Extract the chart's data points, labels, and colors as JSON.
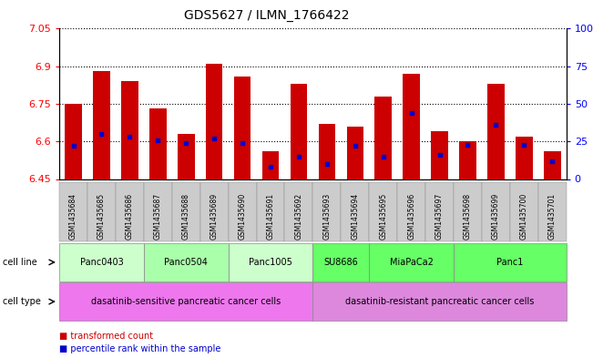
{
  "title": "GDS5627 / ILMN_1766422",
  "samples": [
    "GSM1435684",
    "GSM1435685",
    "GSM1435686",
    "GSM1435687",
    "GSM1435688",
    "GSM1435689",
    "GSM1435690",
    "GSM1435691",
    "GSM1435692",
    "GSM1435693",
    "GSM1435694",
    "GSM1435695",
    "GSM1435696",
    "GSM1435697",
    "GSM1435698",
    "GSM1435699",
    "GSM1435700",
    "GSM1435701"
  ],
  "red_values": [
    6.75,
    6.88,
    6.84,
    6.73,
    6.63,
    6.91,
    6.86,
    6.56,
    6.83,
    6.67,
    6.66,
    6.78,
    6.87,
    6.64,
    6.6,
    6.83,
    6.62,
    6.56
  ],
  "blue_values": [
    22,
    30,
    28,
    26,
    24,
    27,
    24,
    8,
    15,
    10,
    22,
    15,
    44,
    16,
    23,
    36,
    23,
    12
  ],
  "ylim_left": [
    6.45,
    7.05
  ],
  "ylim_right": [
    0,
    100
  ],
  "yticks_left": [
    6.45,
    6.6,
    6.75,
    6.9,
    7.05
  ],
  "yticks_right": [
    0,
    25,
    50,
    75,
    100
  ],
  "ytick_labels_left": [
    "6.45",
    "6.6",
    "6.75",
    "6.9",
    "7.05"
  ],
  "ytick_labels_right": [
    "0",
    "25",
    "50",
    "75",
    "100%"
  ],
  "cell_line_groups": [
    {
      "label": "Panc0403",
      "start": 0,
      "end": 2,
      "color": "#ccffcc"
    },
    {
      "label": "Panc0504",
      "start": 3,
      "end": 5,
      "color": "#aaffaa"
    },
    {
      "label": "Panc1005",
      "start": 6,
      "end": 8,
      "color": "#ccffcc"
    },
    {
      "label": "SU8686",
      "start": 9,
      "end": 10,
      "color": "#66ff66"
    },
    {
      "label": "MiaPaCa2",
      "start": 11,
      "end": 13,
      "color": "#66ff66"
    },
    {
      "label": "Panc1",
      "start": 14,
      "end": 17,
      "color": "#66ff66"
    }
  ],
  "cell_type_groups": [
    {
      "label": "dasatinib-sensitive pancreatic cancer cells",
      "start": 0,
      "end": 8,
      "color": "#ee77ee"
    },
    {
      "label": "dasatinib-resistant pancreatic cancer cells",
      "start": 9,
      "end": 17,
      "color": "#dd88dd"
    }
  ],
  "cell_line_label": "cell line",
  "cell_type_label": "cell type",
  "legend_red": "transformed count",
  "legend_blue": "percentile rank within the sample",
  "bar_color_red": "#cc0000",
  "bar_color_blue": "#0000cc",
  "bar_width": 0.6,
  "baseline": 6.45
}
